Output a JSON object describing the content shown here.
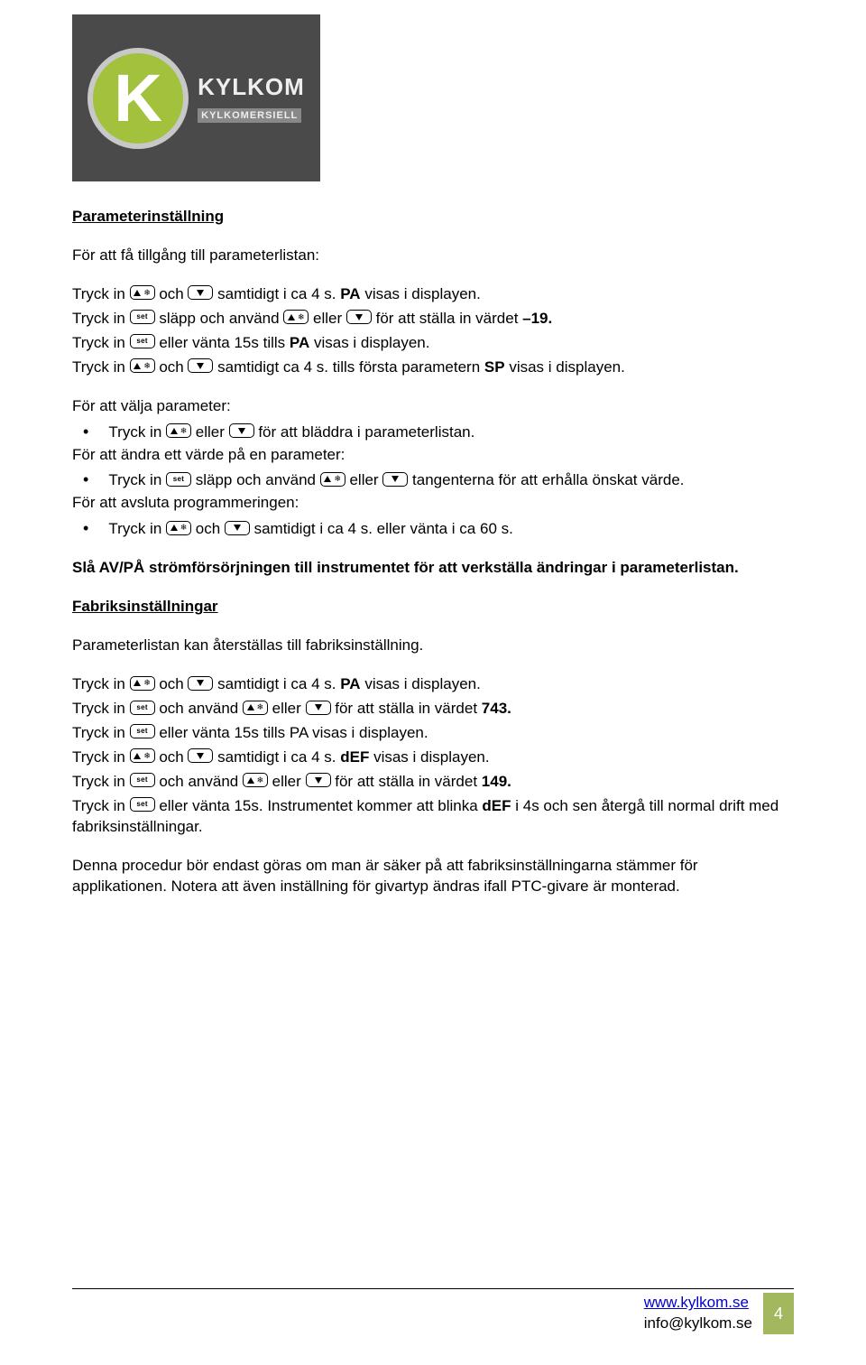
{
  "logo": {
    "k": "K",
    "brand_top": "KYLKOM",
    "brand_tag": "KYLKOMERSIELL"
  },
  "sec1_title": "Parameterinställning",
  "sec1_intro": "För att få tillgång till parameterlistan:",
  "p1a": "Tryck in ",
  "p1b": " och ",
  "p1c": " samtidigt i ca 4 s. ",
  "p1d": "PA",
  "p1e": " visas i displayen.",
  "p2a": "Tryck in ",
  "p2b": " släpp och använd ",
  "p2c": " eller ",
  "p2d": " för att ställa in värdet ",
  "p2e": "–19.",
  "p3a": "Tryck in ",
  "p3b": " eller vänta 15s tills ",
  "p3c": "PA",
  "p3d": " visas i displayen.",
  "p4a": "Tryck in ",
  "p4b": " och ",
  "p4c": "  samtidigt ca 4 s. tills första parametern ",
  "p4d": "SP",
  "p4e": " visas i displayen.",
  "sel_title": "För att välja parameter:",
  "sel_a": "Tryck in ",
  "sel_b": " eller ",
  "sel_c": " för att bläddra i parameterlistan.",
  "chg_title": "För att ändra ett värde på en parameter:",
  "chg_a": "Tryck in ",
  "chg_b": " släpp och använd ",
  "chg_c": " eller ",
  "chg_d": " tangenterna för att erhålla önskat värde.",
  "end_title": "För att avsluta programmeringen:",
  "end_a": "Tryck in ",
  "end_b": " och ",
  "end_c": " samtidigt i ca 4 s. eller vänta i ca 60 s.",
  "power": "Slå AV/PÅ strömförsörjningen till instrumentet för att verkställa ändringar i parameterlistan.",
  "sec2_title": "Fabriksinställningar",
  "sec2_intro": "Parameterlistan kan återställas till fabriksinställning.",
  "f1a": "Tryck in ",
  "f1b": " och ",
  "f1c": " samtidigt i ca 4 s. ",
  "f1d": "PA",
  "f1e": " visas i displayen.",
  "f2a": "Tryck in ",
  "f2b": " och använd ",
  "f2c": " eller ",
  "f2d": " för att ställa in värdet ",
  "f2e": "743.",
  "f3a": "Tryck in ",
  "f3b": " eller vänta 15s tills PA visas i displayen.",
  "f4a": "Tryck in ",
  "f4b": " och ",
  "f4c": " samtidigt i ca 4 s. ",
  "f4d": "dEF",
  "f4e": " visas i displayen.",
  "f5a": "Tryck in ",
  "f5b": " och använd ",
  "f5c": " eller ",
  "f5d": " för att ställa in värdet ",
  "f5e": "149.",
  "f6a": "Tryck in ",
  "f6b": " eller vänta 15s. Instrumentet kommer att blinka ",
  "f6c": "dEF",
  "f6d": " i 4s och sen återgå till normal drift med fabriksinställningar.",
  "note": "Denna procedur bör endast göras om man är säker på att fabriksinställningarna stämmer för applikationen. Notera att även inställning för givartyp ändras ifall PTC-givare är monterad.",
  "footer_web": "www.kylkom.se",
  "footer_mail": "info@kylkom.se",
  "page_no": "4",
  "set_label": "set"
}
